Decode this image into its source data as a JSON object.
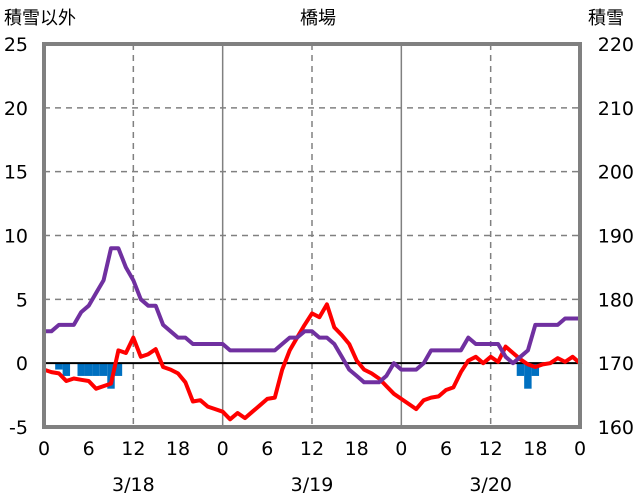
{
  "chart_data": {
    "type": "line",
    "title": "橋場",
    "y_left_label": "積雪以外",
    "y_right_label": "積雪",
    "y_left_range": [
      -5,
      25
    ],
    "y_left_ticks": [
      "25",
      "20",
      "15",
      "10",
      "5",
      "0",
      "-5"
    ],
    "y_right_range": [
      160,
      220
    ],
    "y_right_ticks": [
      "220",
      "210",
      "200",
      "190",
      "180",
      "170",
      "160"
    ],
    "x_range_hours": [
      0,
      72
    ],
    "x_tick_labels": [
      "0",
      "6",
      "12",
      "18",
      "0",
      "6",
      "12",
      "18",
      "0",
      "6",
      "12",
      "18",
      "0"
    ],
    "date_labels": [
      "3/18",
      "3/19",
      "3/20"
    ],
    "grid": true,
    "colors": {
      "temperature": "#ff0000",
      "snow_depth": "#7030a0",
      "precipitation": "#0070c0",
      "zero_line": "#000000",
      "grid": "#808080",
      "frame": "#808080"
    },
    "series": [
      {
        "axis": "left",
        "style": "line",
        "color": "#ff0000",
        "x": [
          0,
          1,
          2,
          3,
          4,
          5,
          6,
          7,
          8,
          9,
          10,
          11,
          12,
          13,
          14,
          15,
          16,
          17,
          18,
          19,
          20,
          21,
          22,
          23,
          24,
          25,
          26,
          27,
          28,
          29,
          30,
          31,
          32,
          33,
          34,
          35,
          36,
          37,
          38,
          39,
          40,
          41,
          42,
          43,
          44,
          45,
          46,
          47,
          48,
          49,
          50,
          51,
          52,
          53,
          54,
          55,
          56,
          57,
          58,
          59,
          60,
          61,
          62,
          63,
          64,
          65,
          66,
          67,
          68,
          69,
          70,
          71,
          72
        ],
        "values": [
          -0.5,
          -0.7,
          -0.8,
          -1.4,
          -1.2,
          -1.3,
          -1.4,
          -2.0,
          -1.8,
          -1.6,
          1.0,
          0.8,
          2.0,
          0.5,
          0.7,
          1.1,
          -0.3,
          -0.5,
          -0.8,
          -1.5,
          -3.0,
          -2.9,
          -3.4,
          -3.6,
          -3.8,
          -4.4,
          -3.9,
          -4.3,
          -3.8,
          -3.3,
          -2.8,
          -2.7,
          -0.5,
          1.0,
          2.0,
          3.0,
          3.9,
          3.6,
          4.6,
          2.8,
          2.2,
          1.5,
          0.2,
          -0.5,
          -0.8,
          -1.2,
          -1.8,
          -2.4,
          -2.8,
          -3.2,
          -3.6,
          -2.9,
          -2.7,
          -2.6,
          -2.1,
          -1.9,
          -0.7,
          0.2,
          0.5,
          0.0,
          0.5,
          0.1,
          1.3,
          0.8,
          0.3,
          -0.1,
          -0.3,
          -0.1,
          0.0,
          0.4,
          0.1,
          0.5,
          0.0
        ]
      },
      {
        "axis": "right",
        "style": "line",
        "color": "#7030a0",
        "x": [
          0,
          1,
          2,
          3,
          4,
          5,
          6,
          7,
          8,
          9,
          10,
          11,
          12,
          13,
          14,
          15,
          16,
          17,
          18,
          19,
          20,
          21,
          22,
          23,
          24,
          25,
          26,
          27,
          28,
          29,
          30,
          31,
          32,
          33,
          34,
          35,
          36,
          37,
          38,
          39,
          40,
          41,
          42,
          43,
          44,
          45,
          46,
          47,
          48,
          49,
          50,
          51,
          52,
          53,
          54,
          55,
          56,
          57,
          58,
          59,
          60,
          61,
          62,
          63,
          64,
          65,
          66,
          67,
          68,
          69,
          70,
          71,
          72
        ],
        "values": [
          175,
          175,
          176,
          176,
          176,
          178,
          179,
          181,
          183,
          188,
          188,
          185,
          183,
          180,
          179,
          179,
          176,
          175,
          174,
          174,
          173,
          173,
          173,
          173,
          173,
          172,
          172,
          172,
          172,
          172,
          172,
          172,
          173,
          174,
          174,
          175,
          175,
          174,
          174,
          173,
          171,
          169,
          168,
          167,
          167,
          167,
          168,
          170,
          169,
          169,
          169,
          170,
          172,
          172,
          172,
          172,
          172,
          174,
          173,
          173,
          173,
          173,
          171,
          170,
          171,
          172,
          176,
          176,
          176,
          176,
          177,
          177,
          177
        ]
      },
      {
        "axis": "left",
        "style": "bar",
        "color": "#0070c0",
        "x": [
          2,
          3,
          5,
          6,
          7,
          8,
          9,
          10,
          64,
          65,
          66
        ],
        "values": [
          -0.5,
          -1.0,
          -1.0,
          -1.0,
          -1.0,
          -1.0,
          -2.0,
          -1.0,
          -1.0,
          -2.0,
          -1.0
        ]
      }
    ]
  }
}
